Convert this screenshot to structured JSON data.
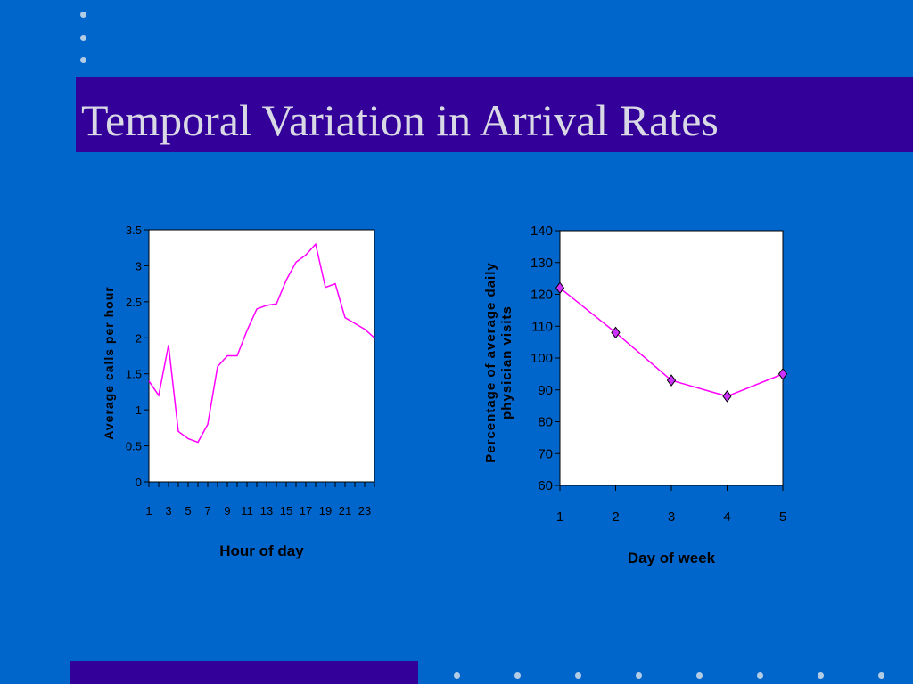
{
  "slide": {
    "title": "Temporal Variation in Arrival Rates"
  },
  "colors": {
    "background": "#0066cc",
    "title_bar": "#330099",
    "title_text": "#d9d9e6",
    "plot_area": "#ffffff",
    "series_line": "#ff00ff",
    "marker_fill": "#cc33ff"
  },
  "chart_data": [
    {
      "type": "line",
      "title": "",
      "xlabel": "Hour of day",
      "ylabel": "Average calls per hour",
      "x": [
        1,
        2,
        3,
        4,
        5,
        6,
        7,
        8,
        9,
        10,
        11,
        12,
        13,
        14,
        15,
        16,
        17,
        18,
        19,
        20,
        21,
        22,
        23,
        24
      ],
      "x_tick_labels": [
        "1",
        "3",
        "5",
        "7",
        "9",
        "11",
        "13",
        "15",
        "17",
        "19",
        "21",
        "23"
      ],
      "ylim": [
        0,
        3.5
      ],
      "y_ticks": [
        "0",
        "0.5",
        "1",
        "1.5",
        "2",
        "2.5",
        "3",
        "3.5"
      ],
      "grid": false,
      "series": [
        {
          "values": [
            1.4,
            1.2,
            1.9,
            0.7,
            0.6,
            0.55,
            0.8,
            1.6,
            1.75,
            1.75,
            2.1,
            2.4,
            2.45,
            2.47,
            2.8,
            3.05,
            3.15,
            3.3,
            2.7,
            2.75,
            2.28,
            2.2,
            2.12,
            2.0
          ],
          "marker": "none"
        }
      ]
    },
    {
      "type": "line",
      "title": "",
      "xlabel": "Day of week",
      "ylabel": "Percentage of average daily physician visits",
      "x": [
        1,
        2,
        3,
        4,
        5
      ],
      "x_tick_labels": [
        "1",
        "2",
        "3",
        "4",
        "5"
      ],
      "ylim": [
        60,
        140
      ],
      "y_ticks": [
        "60",
        "70",
        "80",
        "90",
        "100",
        "110",
        "120",
        "130",
        "140"
      ],
      "grid": false,
      "series": [
        {
          "values": [
            122,
            108,
            93,
            88,
            95
          ],
          "marker": "diamond"
        }
      ]
    }
  ]
}
